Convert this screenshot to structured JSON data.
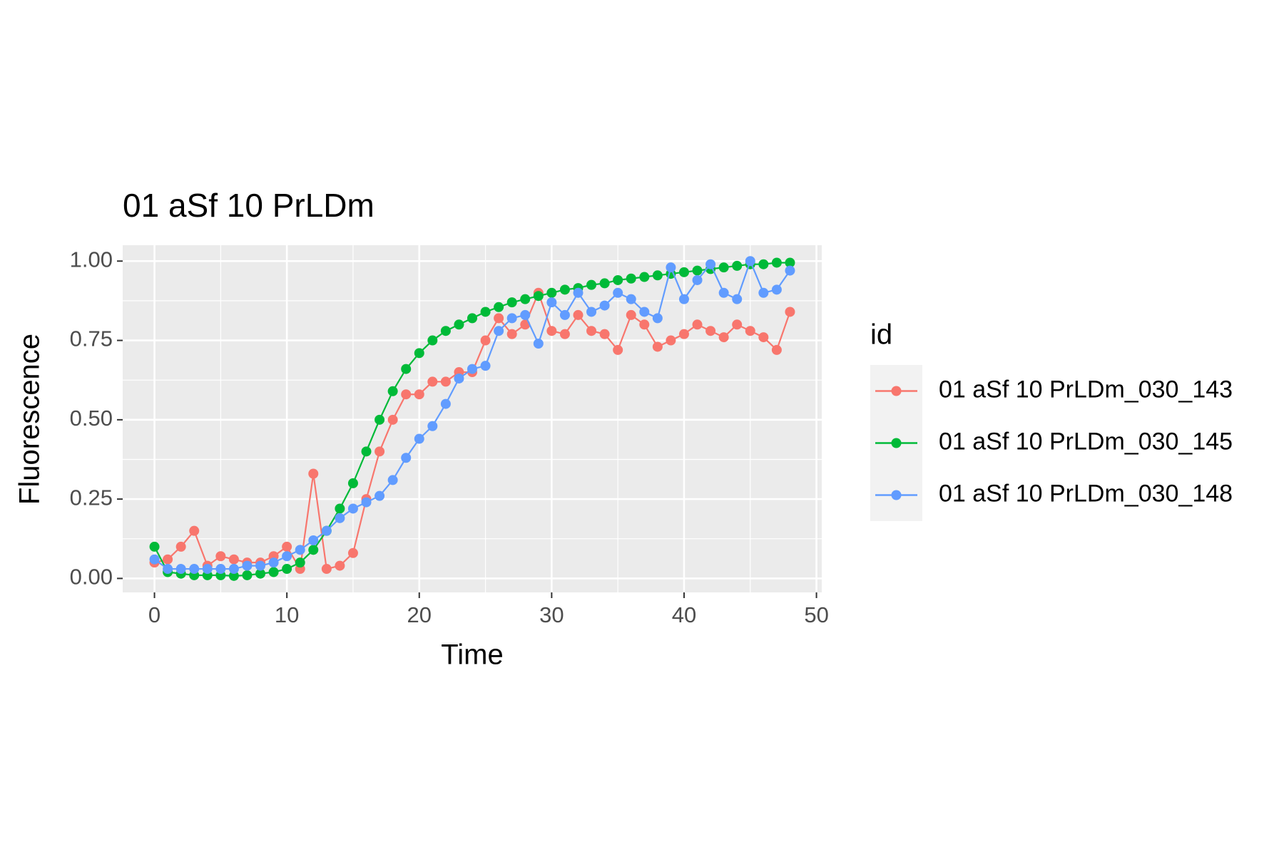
{
  "chart_data": {
    "type": "line",
    "title": "01 aSf 10 PrLDm",
    "x_label": "Time",
    "y_label": "Fluorescence",
    "legend_title": "id",
    "legend_position": "right",
    "grid": true,
    "xlim": [
      -2.4,
      50.4
    ],
    "ylim": [
      -0.044,
      1.05
    ],
    "xticks": [
      0,
      10,
      20,
      30,
      40,
      50
    ],
    "yticks": [
      {
        "value": 0,
        "label": "0.00"
      },
      {
        "value": 0.25,
        "label": "0.25"
      },
      {
        "value": 0.5,
        "label": "0.50"
      },
      {
        "value": 0.75,
        "label": "0.75"
      },
      {
        "value": 1,
        "label": "1.00"
      }
    ],
    "x": [
      0,
      1,
      2,
      3,
      4,
      5,
      6,
      7,
      8,
      9,
      10,
      11,
      12,
      13,
      14,
      15,
      16,
      17,
      18,
      19,
      20,
      21,
      22,
      23,
      24,
      25,
      26,
      27,
      28,
      29,
      30,
      31,
      32,
      33,
      34,
      35,
      36,
      37,
      38,
      39,
      40,
      41,
      42,
      43,
      44,
      45,
      46,
      47,
      48
    ],
    "series": [
      {
        "name": "01 aSf 10 PrLDm_030_143",
        "color": "#F8766D",
        "values": [
          0.05,
          0.06,
          0.1,
          0.15,
          0.04,
          0.07,
          0.06,
          0.05,
          0.05,
          0.07,
          0.1,
          0.03,
          0.33,
          0.03,
          0.04,
          0.08,
          0.25,
          0.4,
          0.5,
          0.58,
          0.58,
          0.62,
          0.62,
          0.65,
          0.65,
          0.75,
          0.82,
          0.77,
          0.8,
          0.9,
          0.78,
          0.77,
          0.83,
          0.78,
          0.77,
          0.72,
          0.83,
          0.8,
          0.73,
          0.75,
          0.77,
          0.8,
          0.78,
          0.76,
          0.8,
          0.78,
          0.76,
          0.72,
          0.84
        ]
      },
      {
        "name": "01 aSf 10 PrLDm_030_145",
        "color": "#00BA38",
        "values": [
          0.1,
          0.02,
          0.015,
          0.01,
          0.01,
          0.01,
          0.008,
          0.01,
          0.015,
          0.02,
          0.03,
          0.05,
          0.09,
          0.15,
          0.22,
          0.3,
          0.4,
          0.5,
          0.59,
          0.66,
          0.71,
          0.75,
          0.78,
          0.8,
          0.82,
          0.84,
          0.855,
          0.87,
          0.88,
          0.89,
          0.9,
          0.91,
          0.915,
          0.925,
          0.93,
          0.94,
          0.945,
          0.95,
          0.955,
          0.96,
          0.965,
          0.97,
          0.975,
          0.98,
          0.985,
          0.99,
          0.99,
          0.995,
          0.995
        ]
      },
      {
        "name": "01 aSf 10 PrLDm_030_148",
        "color": "#619CFF",
        "values": [
          0.06,
          0.03,
          0.03,
          0.03,
          0.03,
          0.03,
          0.03,
          0.04,
          0.04,
          0.05,
          0.07,
          0.09,
          0.12,
          0.15,
          0.19,
          0.22,
          0.24,
          0.26,
          0.31,
          0.38,
          0.44,
          0.48,
          0.55,
          0.63,
          0.66,
          0.67,
          0.78,
          0.82,
          0.83,
          0.74,
          0.87,
          0.83,
          0.9,
          0.84,
          0.86,
          0.9,
          0.88,
          0.84,
          0.82,
          0.98,
          0.88,
          0.94,
          0.99,
          0.9,
          0.88,
          1.0,
          0.9,
          0.91,
          0.97
        ]
      }
    ]
  }
}
